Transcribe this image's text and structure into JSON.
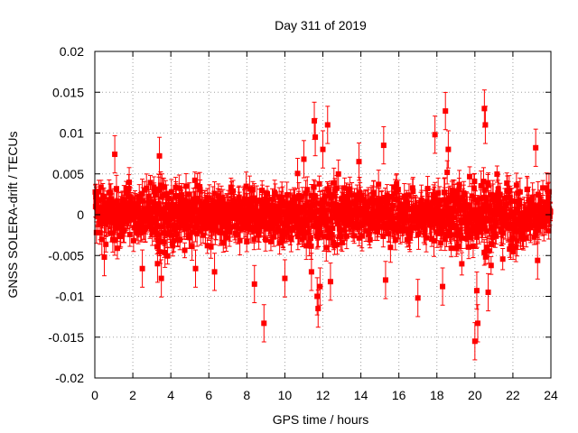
{
  "chart_data": {
    "type": "scatter",
    "title": "Day 311 of 2019",
    "xlabel": "GPS time / hours",
    "ylabel": "GNSS SOLERA-drift / TECUs",
    "xlim": [
      0,
      24
    ],
    "ylim": [
      -0.02,
      0.02
    ],
    "xticks": [
      0,
      2,
      4,
      6,
      8,
      10,
      12,
      14,
      16,
      18,
      20,
      22,
      24
    ],
    "xtick_labels": [
      "0",
      "2",
      "4",
      "6",
      "8",
      "10",
      "12",
      "14",
      "16",
      "18",
      "20",
      "22",
      "24"
    ],
    "yticks": [
      -0.02,
      -0.015,
      -0.01,
      -0.005,
      0,
      0.005,
      0.01,
      0.015,
      0.02
    ],
    "ytick_labels": [
      "-0.02",
      "-0.015",
      "-0.01",
      "-0.005",
      "0",
      "0.005",
      "0.01",
      "0.015",
      "0.02"
    ],
    "grid": true,
    "series": [
      {
        "name": "GNSS SOLERA-drift",
        "color": "#ff0000",
        "marker": "square",
        "error_bars": true,
        "typical_error": 0.0012,
        "outliers": [
          {
            "x": 0.5,
            "y": -0.0052
          },
          {
            "x": 1.05,
            "y": 0.0074
          },
          {
            "x": 2.5,
            "y": -0.0066
          },
          {
            "x": 3.3,
            "y": -0.006
          },
          {
            "x": 3.4,
            "y": 0.0072
          },
          {
            "x": 3.5,
            "y": -0.0078
          },
          {
            "x": 5.3,
            "y": -0.0066
          },
          {
            "x": 6.3,
            "y": -0.007
          },
          {
            "x": 8.4,
            "y": -0.0085
          },
          {
            "x": 8.9,
            "y": -0.0133
          },
          {
            "x": 10.0,
            "y": -0.0078
          },
          {
            "x": 11.0,
            "y": 0.0068
          },
          {
            "x": 11.4,
            "y": -0.007
          },
          {
            "x": 11.55,
            "y": 0.0115
          },
          {
            "x": 11.6,
            "y": 0.0095
          },
          {
            "x": 11.7,
            "y": -0.01
          },
          {
            "x": 11.75,
            "y": -0.0115
          },
          {
            "x": 11.85,
            "y": -0.0088
          },
          {
            "x": 12.0,
            "y": 0.008
          },
          {
            "x": 12.25,
            "y": 0.011
          },
          {
            "x": 12.4,
            "y": -0.0082
          },
          {
            "x": 13.9,
            "y": 0.0065
          },
          {
            "x": 15.2,
            "y": 0.0085
          },
          {
            "x": 15.3,
            "y": -0.008
          },
          {
            "x": 17.0,
            "y": -0.0102
          },
          {
            "x": 17.9,
            "y": 0.0098
          },
          {
            "x": 18.3,
            "y": -0.0088
          },
          {
            "x": 18.45,
            "y": 0.0127
          },
          {
            "x": 18.6,
            "y": 0.008
          },
          {
            "x": 20.0,
            "y": -0.0155
          },
          {
            "x": 20.15,
            "y": -0.0133
          },
          {
            "x": 20.1,
            "y": -0.0093
          },
          {
            "x": 20.5,
            "y": 0.013
          },
          {
            "x": 20.55,
            "y": 0.011
          },
          {
            "x": 20.7,
            "y": -0.0095
          },
          {
            "x": 23.2,
            "y": 0.0082
          },
          {
            "x": 23.3,
            "y": -0.0056
          },
          {
            "x": 23.9,
            "y": 0.0028
          }
        ]
      }
    ]
  }
}
